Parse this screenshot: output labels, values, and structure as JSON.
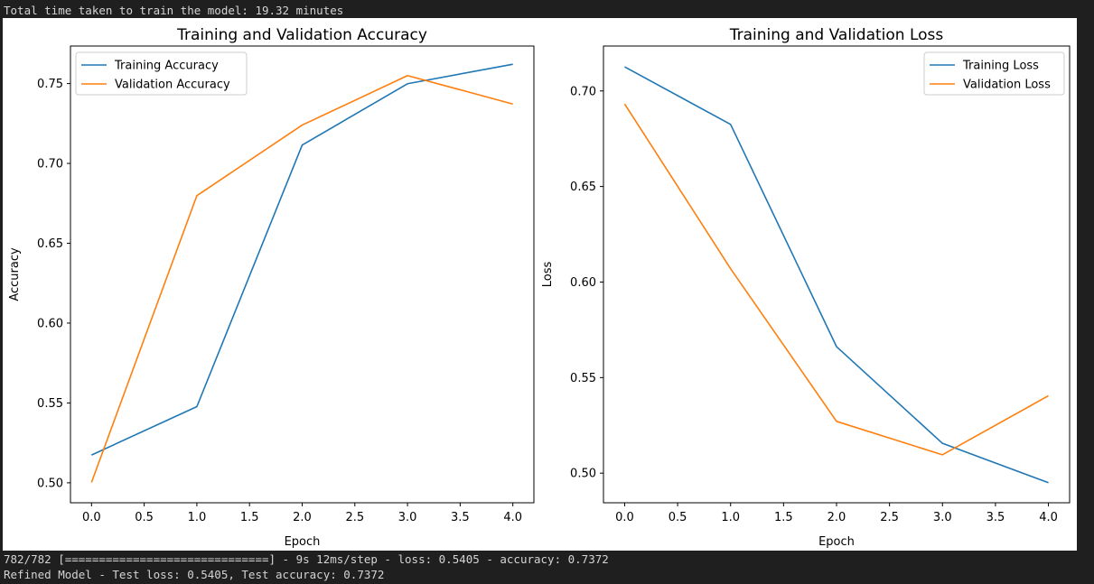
{
  "console": {
    "top": "Total time taken to train the model: 19.32 minutes",
    "bottom_1": "782/782 [==============================] - 9s 12ms/step - loss: 0.5405 - accuracy: 0.7372",
    "bottom_2": "Refined Model - Test loss: 0.5405, Test accuracy: 0.7372"
  },
  "colors": {
    "series_1": "#1f77b4",
    "series_2": "#ff7f0e"
  },
  "chart_data": [
    {
      "type": "line",
      "title": "Training and Validation Accuracy",
      "xlabel": "Epoch",
      "ylabel": "Accuracy",
      "xlim": [
        -0.2,
        4.2
      ],
      "ylim": [
        0.4875,
        0.7735
      ],
      "xticks": [
        0.0,
        0.5,
        1.0,
        1.5,
        2.0,
        2.5,
        3.0,
        3.5,
        4.0
      ],
      "xtick_labels": [
        "0.0",
        "0.5",
        "1.0",
        "1.5",
        "2.0",
        "2.5",
        "3.0",
        "3.5",
        "4.0"
      ],
      "yticks": [
        0.5,
        0.55,
        0.6,
        0.65,
        0.7,
        0.75
      ],
      "ytick_labels": [
        "0.50",
        "0.55",
        "0.60",
        "0.65",
        "0.70",
        "0.75"
      ],
      "legend_position": "upper-left",
      "grid": false,
      "x": [
        0,
        1,
        2,
        3,
        4
      ],
      "series": [
        {
          "name": "Training Accuracy",
          "values": [
            0.5174,
            0.5477,
            0.7115,
            0.7499,
            0.7621
          ]
        },
        {
          "name": "Validation Accuracy",
          "values": [
            0.5003,
            0.6798,
            0.724,
            0.755,
            0.7372
          ]
        }
      ]
    },
    {
      "type": "line",
      "title": "Training and Validation Loss",
      "xlabel": "Epoch",
      "ylabel": "Loss",
      "xlim": [
        -0.2,
        4.2
      ],
      "ylim": [
        0.4845,
        0.7235
      ],
      "xticks": [
        0.0,
        0.5,
        1.0,
        1.5,
        2.0,
        2.5,
        3.0,
        3.5,
        4.0
      ],
      "xtick_labels": [
        "0.0",
        "0.5",
        "1.0",
        "1.5",
        "2.0",
        "2.5",
        "3.0",
        "3.5",
        "4.0"
      ],
      "yticks": [
        0.5,
        0.55,
        0.6,
        0.65,
        0.7
      ],
      "ytick_labels": [
        "0.50",
        "0.55",
        "0.60",
        "0.65",
        "0.70"
      ],
      "legend_position": "upper-right",
      "grid": false,
      "x": [
        0,
        1,
        2,
        3,
        4
      ],
      "series": [
        {
          "name": "Training Loss",
          "values": [
            0.7126,
            0.6825,
            0.5662,
            0.5156,
            0.495
          ]
        },
        {
          "name": "Validation Loss",
          "values": [
            0.6932,
            0.607,
            0.5271,
            0.5096,
            0.5405
          ]
        }
      ]
    }
  ]
}
